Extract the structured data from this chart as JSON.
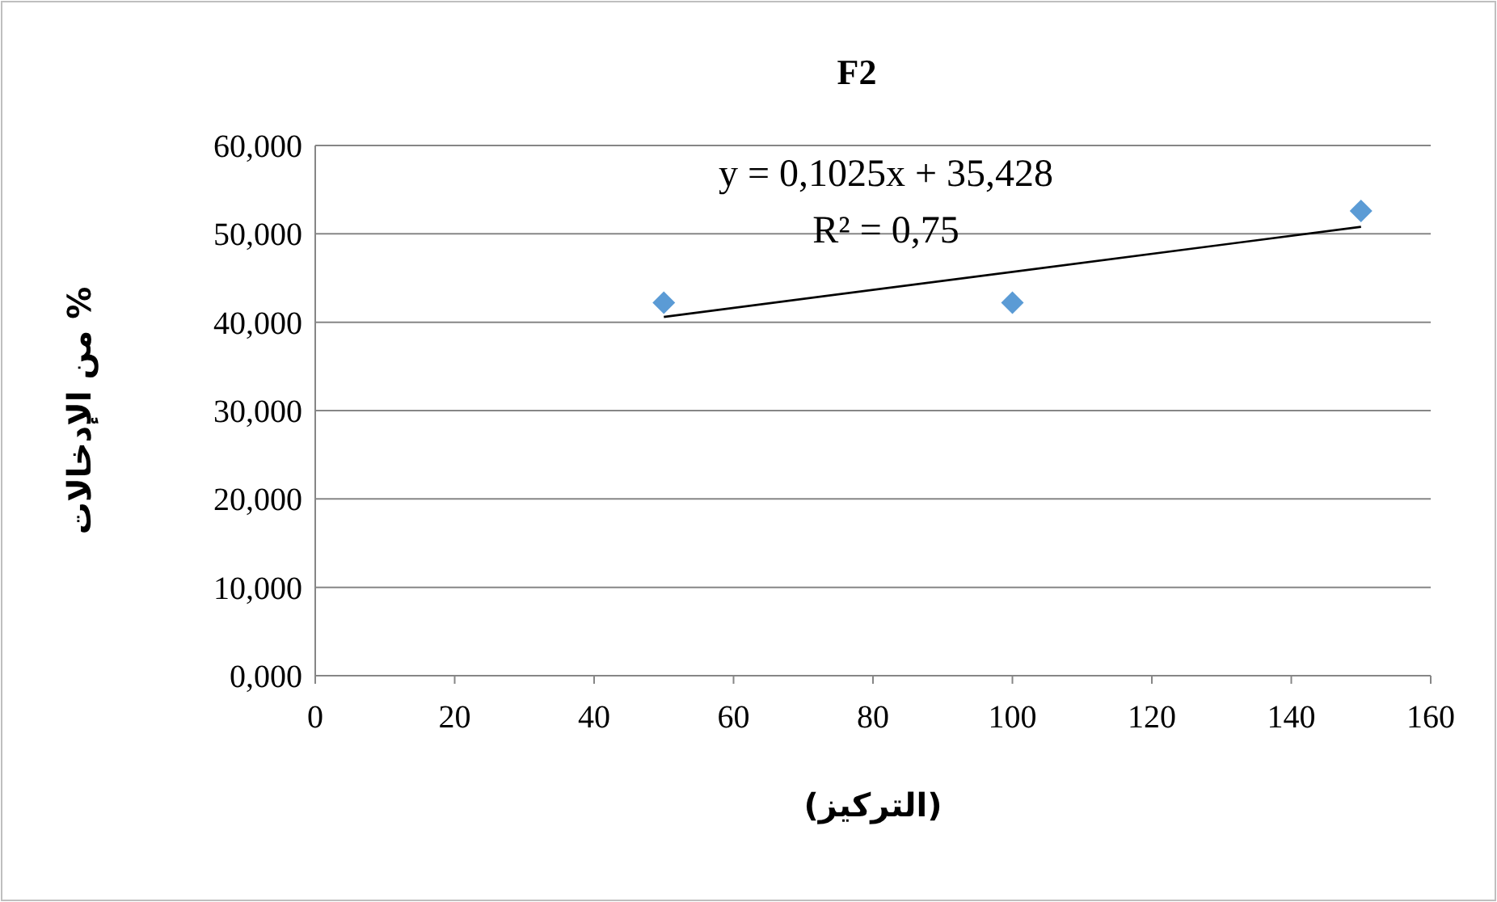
{
  "chart_data": {
    "type": "scatter",
    "title": "F2",
    "xlabel": "(التركيز)",
    "ylabel": "% من الإدخالات",
    "annotations": [
      "y = 0,1025x  + 35,428",
      "R² = 0,75"
    ],
    "series": [
      {
        "x": [
          50,
          100,
          150
        ],
        "values": [
          42.2,
          42.2,
          52.6
        ],
        "color": "#5b9bd5",
        "marker": "diamond"
      },
      {
        "type": "line",
        "x": [
          50,
          150
        ],
        "values": [
          40.6,
          50.8
        ],
        "color": "#000000",
        "marker": "none",
        "line_style": "solid"
      }
    ],
    "xlim": [
      0,
      160
    ],
    "xticks": [
      0,
      20,
      40,
      60,
      80,
      100,
      120,
      140,
      160
    ],
    "ylim": [
      0,
      60
    ],
    "yticks": [
      {
        "value": 0,
        "label": "0,000"
      },
      {
        "value": 10,
        "label": "10,000"
      },
      {
        "value": 20,
        "label": "20,000"
      },
      {
        "value": 30,
        "label": "30,000"
      },
      {
        "value": 40,
        "label": "40,000"
      },
      {
        "value": 50,
        "label": "50,000"
      },
      {
        "value": 60,
        "label": "60,000"
      }
    ],
    "grid": "y"
  }
}
